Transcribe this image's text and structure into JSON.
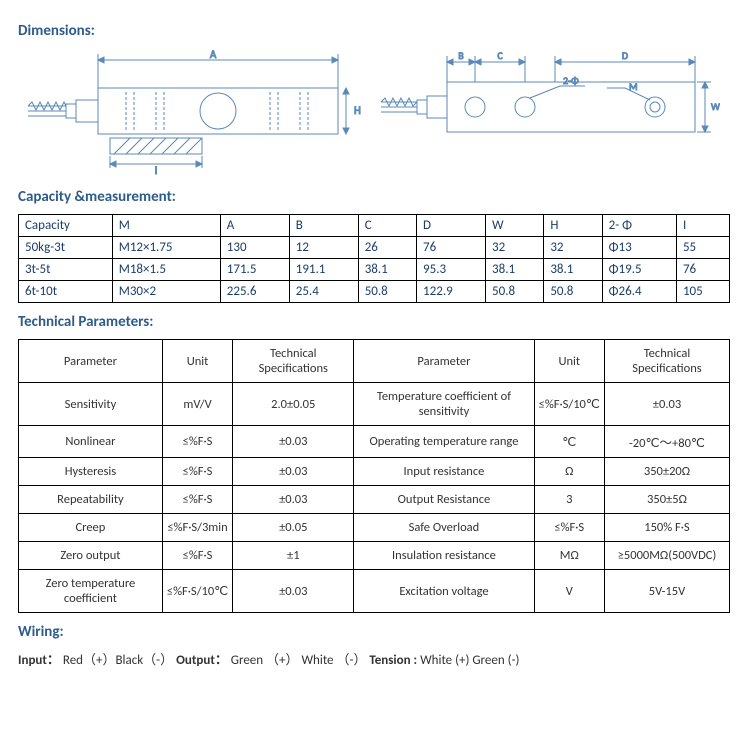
{
  "headings": {
    "dimensions": "Dimensions:",
    "capacity": "Capacity &measurement:",
    "params": "Technical Parameters:",
    "wiring": "Wiring:"
  },
  "capacity_table": {
    "headers": [
      "Capacity",
      "M",
      "A",
      "B",
      "C",
      "D",
      "W",
      "H",
      "2- Φ",
      "I"
    ],
    "rows": [
      [
        "50kg-3t",
        "M12×1.75",
        "130",
        "12",
        "26",
        "76",
        "32",
        "32",
        "Φ13",
        "55"
      ],
      [
        "3t-5t",
        "M18×1.5",
        "171.5",
        "191.1",
        "38.1",
        "95.3",
        "38.1",
        "38.1",
        "Φ19.5",
        "76"
      ],
      [
        "6t-10t",
        "M30×2",
        "225.6",
        "25.4",
        "50.8",
        "122.9",
        "50.8",
        "50.8",
        "Φ26.4",
        "105"
      ]
    ]
  },
  "params_table": {
    "headers": [
      "Parameter",
      "Unit",
      "Technical Specifications",
      "Parameter",
      "Unit",
      "Technical Specifications"
    ],
    "rows": [
      [
        "Sensitivity",
        "mV/V",
        "2.0±0.05",
        "Temperature coefficient of sensitivity",
        "≤%F·S/10℃",
        "±0.03"
      ],
      [
        "Nonlinear",
        "≤%F·S",
        "±0.03",
        "Operating temperature range",
        "℃",
        "-20℃～+80℃"
      ],
      [
        "Hysteresis",
        "≤%F·S",
        "±0.03",
        "Input resistance",
        "Ω",
        "350±20Ω"
      ],
      [
        "Repeatability",
        "≤%F·S",
        "±0.03",
        "Output Resistance",
        "3",
        "350±5Ω"
      ],
      [
        "Creep",
        "≤%F·S/3min",
        "±0.05",
        "Safe Overload",
        "≤%F·S",
        "150% F·S"
      ],
      [
        "Zero output",
        "≤%F·S",
        "±1",
        "Insulation resistance",
        "MΩ",
        "≥5000MΩ(500VDC)"
      ],
      [
        "Zero temperature coefficient",
        "≤%F·S/10℃",
        "±0.03",
        "Excitation voltage",
        "V",
        "5V-15V"
      ]
    ]
  },
  "wiring": {
    "input_label": "Input：",
    "input_text": "Red（+）Black（-）",
    "output_label": "Output：",
    "output_text": "Green （+） White （-）",
    "tension_label": "Tension :",
    "tension_text": " White (+)    Green (-)"
  },
  "diagram": {
    "stroke": "#5b89b8",
    "label_color": "#5b89b8",
    "labels_left": {
      "A": "A",
      "H": "H",
      "I": "I"
    },
    "labels_right": {
      "B": "B",
      "C": "C",
      "D": "D",
      "W": "W",
      "M": "M",
      "twoPhi": "2-Φ"
    }
  }
}
